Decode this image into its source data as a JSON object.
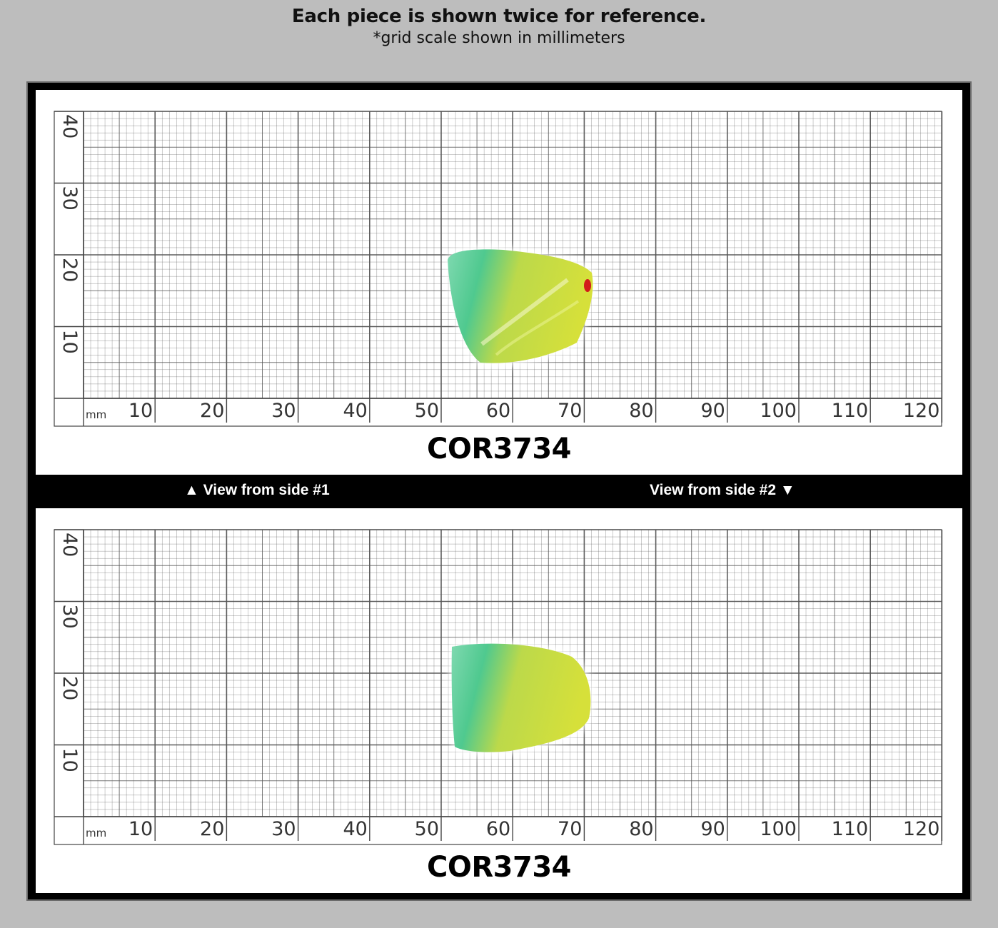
{
  "header": {
    "title": "Each piece is shown twice for reference.",
    "subtitle": "*grid scale shown in millimeters"
  },
  "ruler": {
    "unit": "mm",
    "x_ticks": [
      "10",
      "20",
      "30",
      "40",
      "50",
      "60",
      "70",
      "80",
      "90",
      "100",
      "110",
      "120"
    ],
    "y_ticks": [
      "40",
      "30",
      "20",
      "10"
    ]
  },
  "views": [
    {
      "code": "COR3734",
      "label": "▲ View from side #1"
    },
    {
      "code": "COR3734",
      "label": "View from side #2 ▼"
    }
  ],
  "colors": {
    "background": "#bdbdbd",
    "frame": "#000000",
    "grid_line": "#555555",
    "stone_green": "#5fcf9a",
    "stone_yellow": "#d9e23c"
  }
}
